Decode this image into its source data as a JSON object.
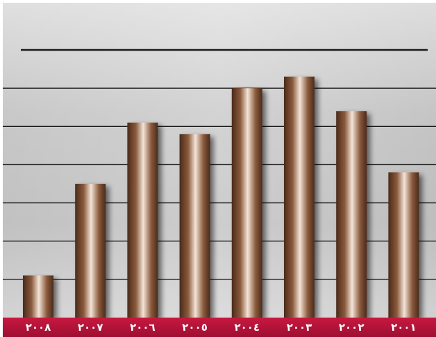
{
  "chart_data": {
    "type": "bar",
    "categories": [
      "٢٠٠٨",
      "٢٠٠٧",
      "٢٠٠٦",
      "٢٠٠٥",
      "٢٠٠٤",
      "٢٠٠٣",
      "٢٠٠٢",
      "٢٠٠١"
    ],
    "values": [
      1.1,
      3.5,
      5.1,
      4.8,
      6.0,
      6.3,
      5.4,
      3.8
    ],
    "title": "",
    "xlabel": "",
    "ylabel": "",
    "ylim": [
      0,
      7
    ],
    "grid": true,
    "legend": "none",
    "colors": {
      "bar_dark": "#4a2a1a",
      "bar_mid": "#8a5a3c",
      "bar_light": "#f3e4d8",
      "axis_band": "#b0123a",
      "background": "#c4c4c4",
      "gridline": "#1a1a1a",
      "tick_text": "#ffffff"
    }
  }
}
